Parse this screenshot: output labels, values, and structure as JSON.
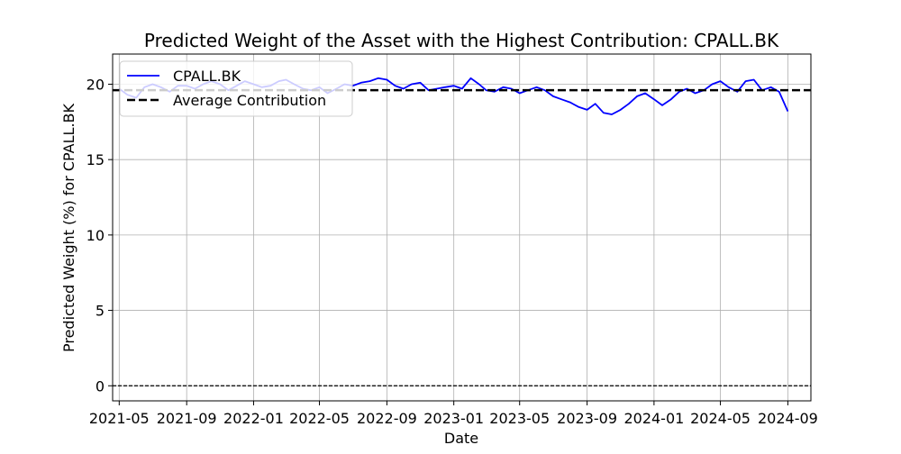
{
  "chart_data": {
    "type": "line",
    "title": "Predicted Weight of the Asset with the Highest Contribution: CPALL.BK",
    "xlabel": "Date",
    "ylabel": "Predicted Weight (%) for CPALL.BK",
    "xlim": [
      "2021-04-19",
      "2024-10-13"
    ],
    "ylim": [
      -1.0,
      22.0
    ],
    "x_ticks": [
      "2021-05",
      "2021-09",
      "2022-01",
      "2022-05",
      "2022-09",
      "2023-01",
      "2023-05",
      "2023-09",
      "2024-01",
      "2024-05",
      "2024-09"
    ],
    "y_ticks": [
      0,
      5,
      10,
      15,
      20
    ],
    "grid": true,
    "legend_position": "upper-left",
    "series": [
      {
        "name": "CPALL.BK",
        "color": "#0000ff",
        "style": "solid",
        "x": [
          "2021-05-01",
          "2021-05-16",
          "2021-06-01",
          "2021-06-16",
          "2021-07-01",
          "2021-07-16",
          "2021-08-01",
          "2021-08-16",
          "2021-09-01",
          "2021-09-16",
          "2021-10-01",
          "2021-10-16",
          "2021-11-01",
          "2021-11-16",
          "2021-12-01",
          "2021-12-16",
          "2022-01-01",
          "2022-01-16",
          "2022-02-01",
          "2022-02-16",
          "2022-03-01",
          "2022-03-16",
          "2022-04-01",
          "2022-04-16",
          "2022-05-01",
          "2022-05-16",
          "2022-06-01",
          "2022-06-16",
          "2022-07-01",
          "2022-07-16",
          "2022-08-01",
          "2022-08-16",
          "2022-09-01",
          "2022-09-16",
          "2022-10-01",
          "2022-10-16",
          "2022-11-01",
          "2022-11-16",
          "2022-12-01",
          "2022-12-16",
          "2023-01-01",
          "2023-01-16",
          "2023-02-01",
          "2023-02-16",
          "2023-03-01",
          "2023-03-16",
          "2023-04-01",
          "2023-04-16",
          "2023-05-01",
          "2023-05-16",
          "2023-06-01",
          "2023-06-16",
          "2023-07-01",
          "2023-07-16",
          "2023-08-01",
          "2023-08-16",
          "2023-09-01",
          "2023-09-16",
          "2023-10-01",
          "2023-10-16",
          "2023-11-01",
          "2023-11-16",
          "2023-12-01",
          "2023-12-16",
          "2024-01-01",
          "2024-01-16",
          "2024-02-01",
          "2024-02-16",
          "2024-03-01",
          "2024-03-16",
          "2024-04-01",
          "2024-04-16",
          "2024-05-01",
          "2024-05-16",
          "2024-06-01",
          "2024-06-16",
          "2024-07-01",
          "2024-07-16",
          "2024-08-01",
          "2024-08-16",
          "2024-09-01"
        ],
        "values": [
          19.7,
          19.3,
          19.1,
          19.8,
          20.0,
          19.8,
          19.5,
          19.9,
          19.9,
          19.7,
          20.0,
          20.2,
          20.0,
          19.6,
          19.9,
          20.2,
          20.0,
          19.8,
          19.9,
          20.2,
          20.3,
          20.0,
          19.7,
          19.6,
          19.8,
          19.4,
          19.7,
          20.0,
          19.9,
          20.1,
          20.2,
          20.4,
          20.3,
          19.9,
          19.7,
          20.0,
          20.1,
          19.6,
          19.7,
          19.8,
          19.9,
          19.7,
          20.4,
          20.0,
          19.6,
          19.5,
          19.8,
          19.7,
          19.4,
          19.6,
          19.8,
          19.6,
          19.2,
          19.0,
          18.8,
          18.5,
          18.3,
          18.7,
          18.1,
          18.0,
          18.3,
          18.7,
          19.2,
          19.4,
          19.0,
          18.6,
          19.0,
          19.5,
          19.7,
          19.4,
          19.6,
          20.0,
          20.2,
          19.8,
          19.5,
          20.2,
          20.3,
          19.6,
          19.8,
          19.5,
          18.2
        ]
      },
      {
        "name": "Average Contribution",
        "color": "#000000",
        "style": "dashed",
        "constant": 19.6
      }
    ],
    "reference_lines": [
      {
        "y": 0,
        "color": "#000000",
        "style": "dashed"
      }
    ]
  }
}
